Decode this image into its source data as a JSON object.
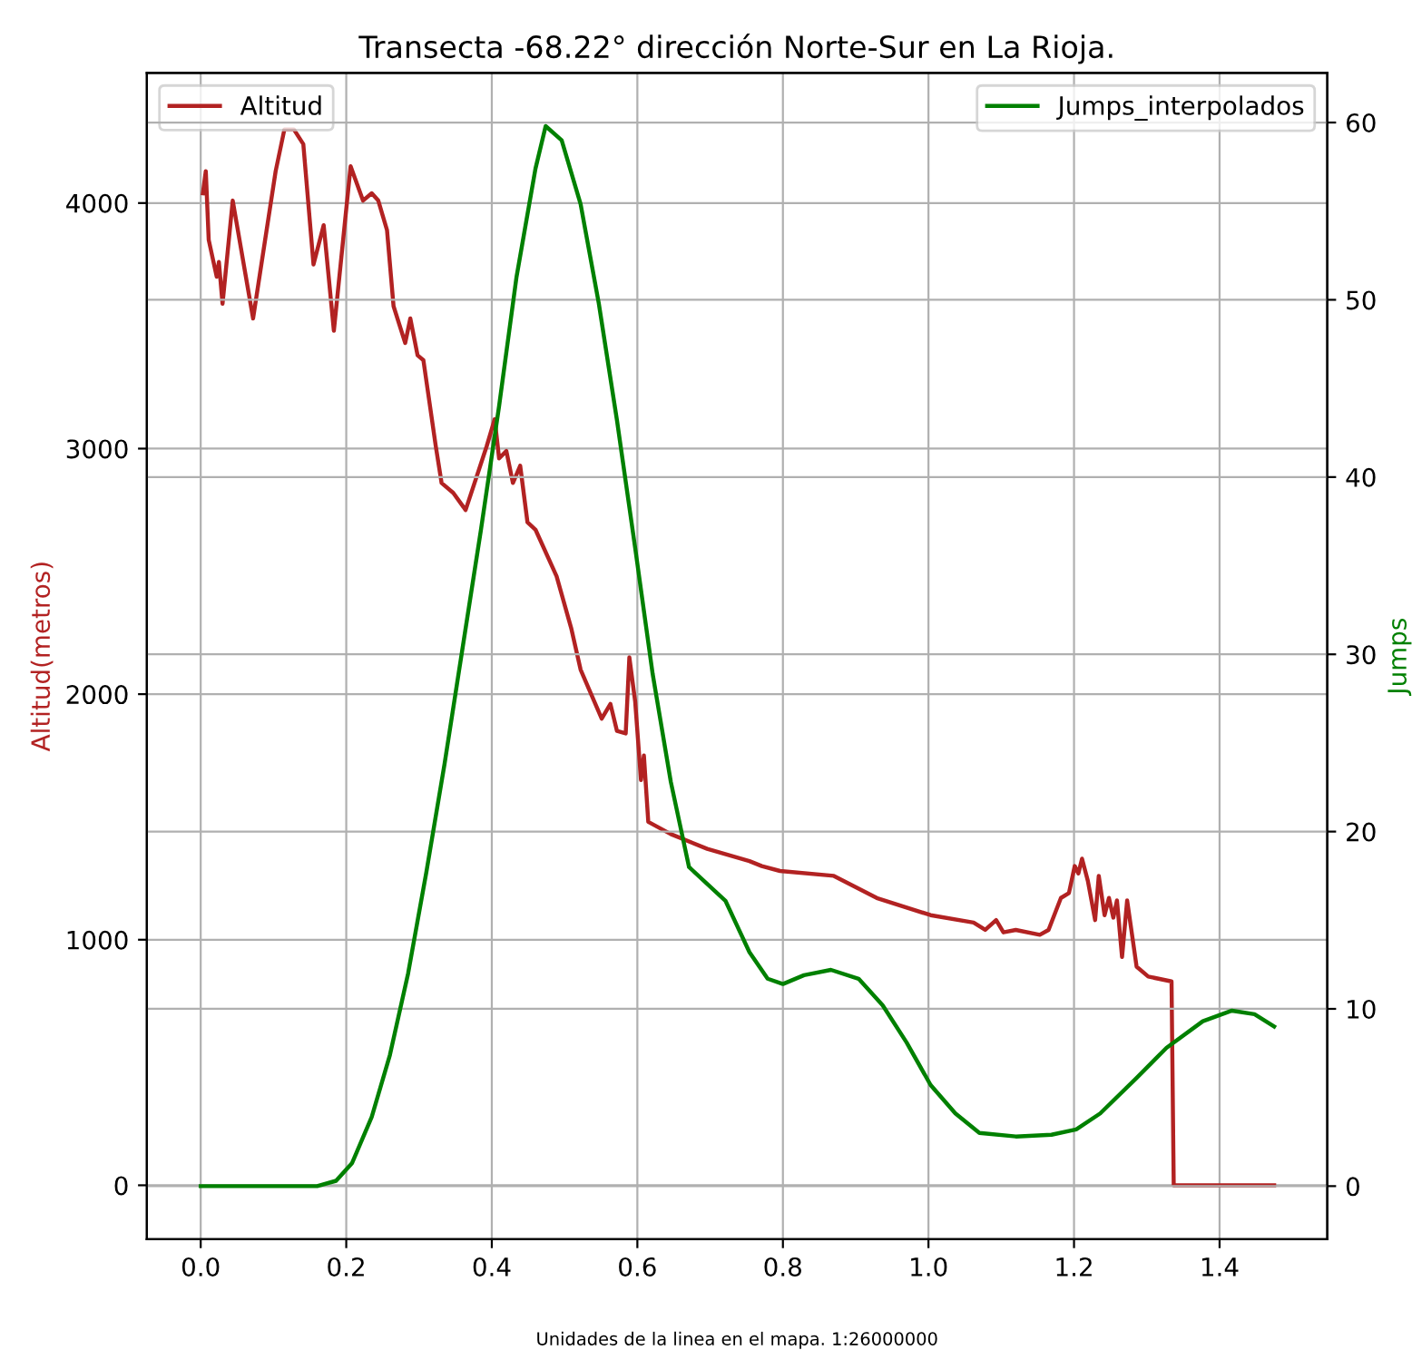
{
  "chart_data": {
    "type": "line",
    "title": "Transecta -68.22° dirección Norte-Sur en La Rioja.",
    "xlabel": "Unidades de la linea en el mapa. 1:26000000",
    "ylabel": "Altitud(metros)",
    "y2label": "Jumps",
    "xlim": [
      -0.074,
      1.548
    ],
    "xticks": [
      {
        "value": 0,
        "label": "0.0"
      },
      0.2,
      0.4,
      0.6,
      0.8,
      {
        "value": 1,
        "label": "1.0"
      },
      1.2,
      1.4
    ],
    "ylim": [
      -220,
      4530
    ],
    "yticks": [
      0,
      1000,
      2000,
      3000,
      4000
    ],
    "y2lim": [
      -3,
      62.8
    ],
    "y2ticks": [
      0,
      10,
      20,
      30,
      40,
      50,
      60
    ],
    "grid": true,
    "legend": [
      "top left",
      "top right"
    ],
    "line_style": "solid",
    "marker": "none",
    "series": [
      {
        "name": "Altitud",
        "color": "#b22222",
        "x": [
          0.003,
          0.007,
          0.011,
          0.022,
          0.025,
          0.03,
          0.044,
          0.072,
          0.088,
          0.103,
          0.115,
          0.128,
          0.141,
          0.155,
          0.169,
          0.183,
          0.206,
          0.223,
          0.235,
          0.244,
          0.256,
          0.265,
          0.281,
          0.288,
          0.298,
          0.306,
          0.323,
          0.331,
          0.347,
          0.364,
          0.393,
          0.404,
          0.41,
          0.42,
          0.429,
          0.439,
          0.449,
          0.46,
          0.489,
          0.509,
          0.522,
          0.551,
          0.563,
          0.572,
          0.584,
          0.589,
          0.597,
          0.605,
          0.609,
          0.615,
          0.646,
          0.696,
          0.754,
          0.771,
          0.796,
          0.87,
          0.929,
          1.003,
          1.062,
          1.078,
          1.093,
          1.103,
          1.12,
          1.153,
          1.165,
          1.182,
          1.193,
          1.201,
          1.206,
          1.211,
          1.219,
          1.229,
          1.234,
          1.242,
          1.248,
          1.254,
          1.259,
          1.266,
          1.273,
          1.286,
          1.302,
          1.334,
          1.337,
          1.475
        ],
        "values": [
          4040,
          4130,
          3850,
          3700,
          3760,
          3590,
          4010,
          3530,
          3840,
          4130,
          4300,
          4300,
          4240,
          3750,
          3910,
          3480,
          4150,
          4010,
          4040,
          4010,
          3890,
          3580,
          3430,
          3530,
          3380,
          3360,
          3010,
          2860,
          2820,
          2750,
          3010,
          3120,
          2960,
          2990,
          2860,
          2930,
          2700,
          2670,
          2480,
          2270,
          2100,
          1900,
          1960,
          1850,
          1840,
          2150,
          1970,
          1650,
          1750,
          1480,
          1430,
          1370,
          1320,
          1300,
          1280,
          1260,
          1170,
          1100,
          1070,
          1040,
          1080,
          1030,
          1040,
          1020,
          1040,
          1170,
          1190,
          1300,
          1270,
          1330,
          1240,
          1080,
          1260,
          1100,
          1170,
          1090,
          1160,
          930,
          1160,
          890,
          850,
          830,
          0,
          0
        ]
      },
      {
        "name": "Jumps_interpolados",
        "color": "#008000",
        "axis": "y2",
        "x": [
          0,
          0.16,
          0.186,
          0.208,
          0.235,
          0.26,
          0.285,
          0.31,
          0.335,
          0.36,
          0.385,
          0.41,
          0.434,
          0.46,
          0.474,
          0.496,
          0.522,
          0.547,
          0.572,
          0.597,
          0.621,
          0.646,
          0.671,
          0.721,
          0.754,
          0.779,
          0.8,
          0.829,
          0.866,
          0.904,
          0.937,
          0.97,
          1.003,
          1.037,
          1.07,
          1.12,
          1.169,
          1.203,
          1.236,
          1.286,
          1.327,
          1.377,
          1.417,
          1.448,
          1.475
        ],
        "values": [
          0,
          0,
          0.3,
          1.3,
          3.9,
          7.4,
          12,
          17.7,
          23.8,
          30.4,
          37,
          44,
          51.3,
          57.4,
          59.8,
          59,
          55.4,
          49.8,
          43.2,
          36,
          28.9,
          22.8,
          18,
          16.1,
          13.2,
          11.7,
          11.4,
          11.9,
          12.2,
          11.7,
          10.2,
          8.1,
          5.7,
          4.1,
          3.0,
          2.8,
          2.9,
          3.2,
          4.1,
          6.1,
          7.8,
          9.3,
          9.9,
          9.7,
          9.0
        ]
      }
    ]
  }
}
